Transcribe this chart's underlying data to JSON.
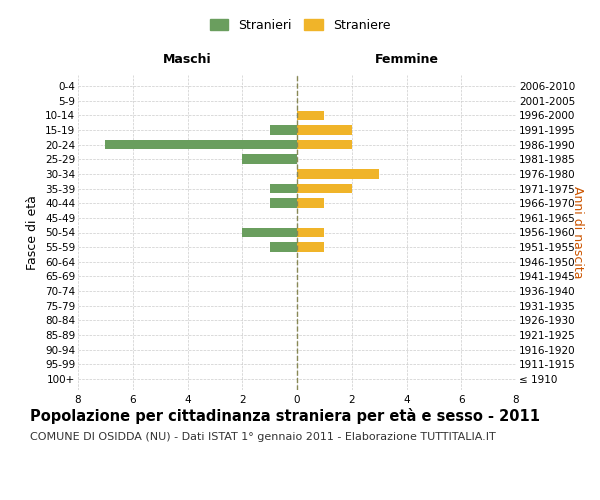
{
  "age_groups": [
    "100+",
    "95-99",
    "90-94",
    "85-89",
    "80-84",
    "75-79",
    "70-74",
    "65-69",
    "60-64",
    "55-59",
    "50-54",
    "45-49",
    "40-44",
    "35-39",
    "30-34",
    "25-29",
    "20-24",
    "15-19",
    "10-14",
    "5-9",
    "0-4"
  ],
  "birth_years": [
    "≤ 1910",
    "1911-1915",
    "1916-1920",
    "1921-1925",
    "1926-1930",
    "1931-1935",
    "1936-1940",
    "1941-1945",
    "1946-1950",
    "1951-1955",
    "1956-1960",
    "1961-1965",
    "1966-1970",
    "1971-1975",
    "1976-1980",
    "1981-1985",
    "1986-1990",
    "1991-1995",
    "1996-2000",
    "2001-2005",
    "2006-2010"
  ],
  "males": [
    0,
    0,
    0,
    0,
    0,
    0,
    0,
    0,
    0,
    1,
    2,
    0,
    1,
    1,
    0,
    2,
    7,
    1,
    0,
    0,
    0
  ],
  "females": [
    0,
    0,
    0,
    0,
    0,
    0,
    0,
    0,
    0,
    1,
    1,
    0,
    1,
    2,
    3,
    0,
    2,
    2,
    1,
    0,
    0
  ],
  "male_color": "#6a9e5e",
  "female_color": "#f0b429",
  "center_line_color": "#888855",
  "grid_color": "#cccccc",
  "bg_color": "#ffffff",
  "title": "Popolazione per cittadinanza straniera per età e sesso - 2011",
  "subtitle": "COMUNE DI OSIDDA (NU) - Dati ISTAT 1° gennaio 2011 - Elaborazione TUTTITALIA.IT",
  "xlabel_left": "Maschi",
  "xlabel_right": "Femmine",
  "ylabel_left": "Fasce di età",
  "ylabel_right": "Anni di nascita",
  "legend_male": "Stranieri",
  "legend_female": "Straniere",
  "xlim": 8,
  "title_fontsize": 10.5,
  "subtitle_fontsize": 8,
  "tick_fontsize": 7.5,
  "label_fontsize": 9
}
